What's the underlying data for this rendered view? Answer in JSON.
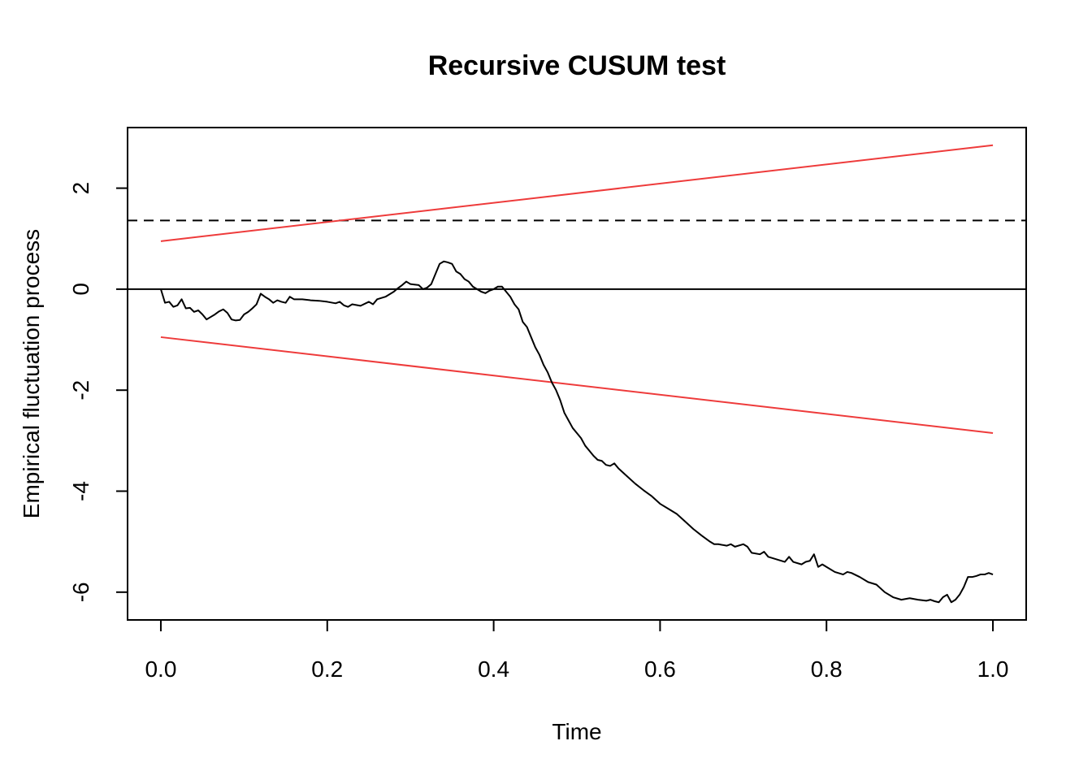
{
  "chart_data": {
    "type": "line",
    "title": "Recursive CUSUM test",
    "xlabel": "Time",
    "ylabel": "Empirical fluctuation process",
    "xlim": [
      -0.04,
      1.04
    ],
    "ylim": [
      -6.55,
      3.2
    ],
    "x_ticks": [
      0.0,
      0.2,
      0.4,
      0.6,
      0.8,
      1.0
    ],
    "x_tick_labels": [
      "0.0",
      "0.2",
      "0.4",
      "0.6",
      "0.8",
      "1.0"
    ],
    "y_ticks": [
      -6,
      -4,
      -2,
      0,
      2
    ],
    "y_tick_labels": [
      "-6",
      "-4",
      "-2",
      "0",
      "2"
    ],
    "grid": false,
    "colors": {
      "process": "#000000",
      "boundary": "#ee3b3b",
      "reference": "#000000"
    },
    "series": [
      {
        "values": [
          [
            0.0,
            0.0
          ],
          [
            0.005,
            -0.27
          ],
          [
            0.01,
            -0.25
          ],
          [
            0.015,
            -0.35
          ],
          [
            0.02,
            -0.32
          ],
          [
            0.025,
            -0.2
          ],
          [
            0.03,
            -0.38
          ],
          [
            0.035,
            -0.37
          ],
          [
            0.04,
            -0.45
          ],
          [
            0.045,
            -0.42
          ],
          [
            0.05,
            -0.5
          ],
          [
            0.055,
            -0.6
          ],
          [
            0.06,
            -0.55
          ],
          [
            0.065,
            -0.5
          ],
          [
            0.07,
            -0.44
          ],
          [
            0.075,
            -0.4
          ],
          [
            0.08,
            -0.47
          ],
          [
            0.085,
            -0.6
          ],
          [
            0.09,
            -0.62
          ],
          [
            0.095,
            -0.61
          ],
          [
            0.1,
            -0.5
          ],
          [
            0.105,
            -0.45
          ],
          [
            0.11,
            -0.38
          ],
          [
            0.115,
            -0.3
          ],
          [
            0.12,
            -0.09
          ],
          [
            0.125,
            -0.15
          ],
          [
            0.13,
            -0.2
          ],
          [
            0.135,
            -0.27
          ],
          [
            0.14,
            -0.22
          ],
          [
            0.145,
            -0.25
          ],
          [
            0.15,
            -0.27
          ],
          [
            0.155,
            -0.15
          ],
          [
            0.16,
            -0.2
          ],
          [
            0.17,
            -0.2
          ],
          [
            0.18,
            -0.22
          ],
          [
            0.19,
            -0.23
          ],
          [
            0.2,
            -0.25
          ],
          [
            0.21,
            -0.28
          ],
          [
            0.215,
            -0.25
          ],
          [
            0.22,
            -0.32
          ],
          [
            0.225,
            -0.35
          ],
          [
            0.23,
            -0.3
          ],
          [
            0.24,
            -0.33
          ],
          [
            0.25,
            -0.25
          ],
          [
            0.255,
            -0.3
          ],
          [
            0.26,
            -0.2
          ],
          [
            0.27,
            -0.15
          ],
          [
            0.28,
            -0.05
          ],
          [
            0.285,
            0.02
          ],
          [
            0.29,
            0.08
          ],
          [
            0.295,
            0.15
          ],
          [
            0.3,
            0.1
          ],
          [
            0.31,
            0.08
          ],
          [
            0.315,
            0.0
          ],
          [
            0.32,
            0.03
          ],
          [
            0.325,
            0.1
          ],
          [
            0.33,
            0.3
          ],
          [
            0.335,
            0.5
          ],
          [
            0.34,
            0.55
          ],
          [
            0.345,
            0.53
          ],
          [
            0.35,
            0.5
          ],
          [
            0.355,
            0.35
          ],
          [
            0.36,
            0.3
          ],
          [
            0.365,
            0.2
          ],
          [
            0.37,
            0.15
          ],
          [
            0.375,
            0.05
          ],
          [
            0.38,
            0.0
          ],
          [
            0.385,
            -0.05
          ],
          [
            0.39,
            -0.08
          ],
          [
            0.395,
            -0.03
          ],
          [
            0.4,
            0.0
          ],
          [
            0.405,
            0.05
          ],
          [
            0.41,
            0.05
          ],
          [
            0.415,
            -0.05
          ],
          [
            0.42,
            -0.15
          ],
          [
            0.425,
            -0.3
          ],
          [
            0.43,
            -0.4
          ],
          [
            0.435,
            -0.65
          ],
          [
            0.44,
            -0.75
          ],
          [
            0.445,
            -0.95
          ],
          [
            0.45,
            -1.15
          ],
          [
            0.455,
            -1.3
          ],
          [
            0.46,
            -1.5
          ],
          [
            0.465,
            -1.65
          ],
          [
            0.47,
            -1.85
          ],
          [
            0.475,
            -2.0
          ],
          [
            0.48,
            -2.2
          ],
          [
            0.485,
            -2.45
          ],
          [
            0.49,
            -2.6
          ],
          [
            0.495,
            -2.75
          ],
          [
            0.5,
            -2.85
          ],
          [
            0.505,
            -2.95
          ],
          [
            0.51,
            -3.1
          ],
          [
            0.515,
            -3.2
          ],
          [
            0.52,
            -3.3
          ],
          [
            0.525,
            -3.38
          ],
          [
            0.53,
            -3.4
          ],
          [
            0.535,
            -3.48
          ],
          [
            0.54,
            -3.5
          ],
          [
            0.545,
            -3.45
          ],
          [
            0.55,
            -3.55
          ],
          [
            0.56,
            -3.7
          ],
          [
            0.57,
            -3.85
          ],
          [
            0.58,
            -3.98
          ],
          [
            0.59,
            -4.1
          ],
          [
            0.6,
            -4.25
          ],
          [
            0.61,
            -4.35
          ],
          [
            0.62,
            -4.45
          ],
          [
            0.63,
            -4.6
          ],
          [
            0.64,
            -4.75
          ],
          [
            0.65,
            -4.88
          ],
          [
            0.66,
            -5.0
          ],
          [
            0.665,
            -5.05
          ],
          [
            0.67,
            -5.05
          ],
          [
            0.68,
            -5.08
          ],
          [
            0.685,
            -5.05
          ],
          [
            0.69,
            -5.1
          ],
          [
            0.7,
            -5.05
          ],
          [
            0.705,
            -5.1
          ],
          [
            0.71,
            -5.22
          ],
          [
            0.72,
            -5.25
          ],
          [
            0.725,
            -5.2
          ],
          [
            0.73,
            -5.3
          ],
          [
            0.74,
            -5.35
          ],
          [
            0.75,
            -5.4
          ],
          [
            0.755,
            -5.3
          ],
          [
            0.76,
            -5.4
          ],
          [
            0.77,
            -5.45
          ],
          [
            0.775,
            -5.4
          ],
          [
            0.78,
            -5.38
          ],
          [
            0.785,
            -5.25
          ],
          [
            0.79,
            -5.5
          ],
          [
            0.795,
            -5.45
          ],
          [
            0.8,
            -5.5
          ],
          [
            0.81,
            -5.6
          ],
          [
            0.82,
            -5.65
          ],
          [
            0.825,
            -5.6
          ],
          [
            0.83,
            -5.62
          ],
          [
            0.84,
            -5.7
          ],
          [
            0.85,
            -5.8
          ],
          [
            0.86,
            -5.85
          ],
          [
            0.87,
            -6.0
          ],
          [
            0.88,
            -6.1
          ],
          [
            0.89,
            -6.15
          ],
          [
            0.9,
            -6.12
          ],
          [
            0.91,
            -6.15
          ],
          [
            0.92,
            -6.17
          ],
          [
            0.925,
            -6.15
          ],
          [
            0.93,
            -6.18
          ],
          [
            0.935,
            -6.2
          ],
          [
            0.94,
            -6.1
          ],
          [
            0.945,
            -6.05
          ],
          [
            0.95,
            -6.2
          ],
          [
            0.955,
            -6.15
          ],
          [
            0.96,
            -6.05
          ],
          [
            0.965,
            -5.9
          ],
          [
            0.97,
            -5.7
          ],
          [
            0.975,
            -5.7
          ],
          [
            0.98,
            -5.68
          ],
          [
            0.985,
            -5.65
          ],
          [
            0.99,
            -5.65
          ],
          [
            0.995,
            -5.62
          ],
          [
            1.0,
            -5.65
          ]
        ]
      }
    ],
    "boundaries": {
      "upper": [
        [
          0.0,
          0.95
        ],
        [
          1.0,
          2.85
        ]
      ],
      "lower": [
        [
          0.0,
          -0.95
        ],
        [
          1.0,
          -2.85
        ]
      ]
    },
    "reference_lines": {
      "zero": 0,
      "dashed": 1.36
    }
  }
}
